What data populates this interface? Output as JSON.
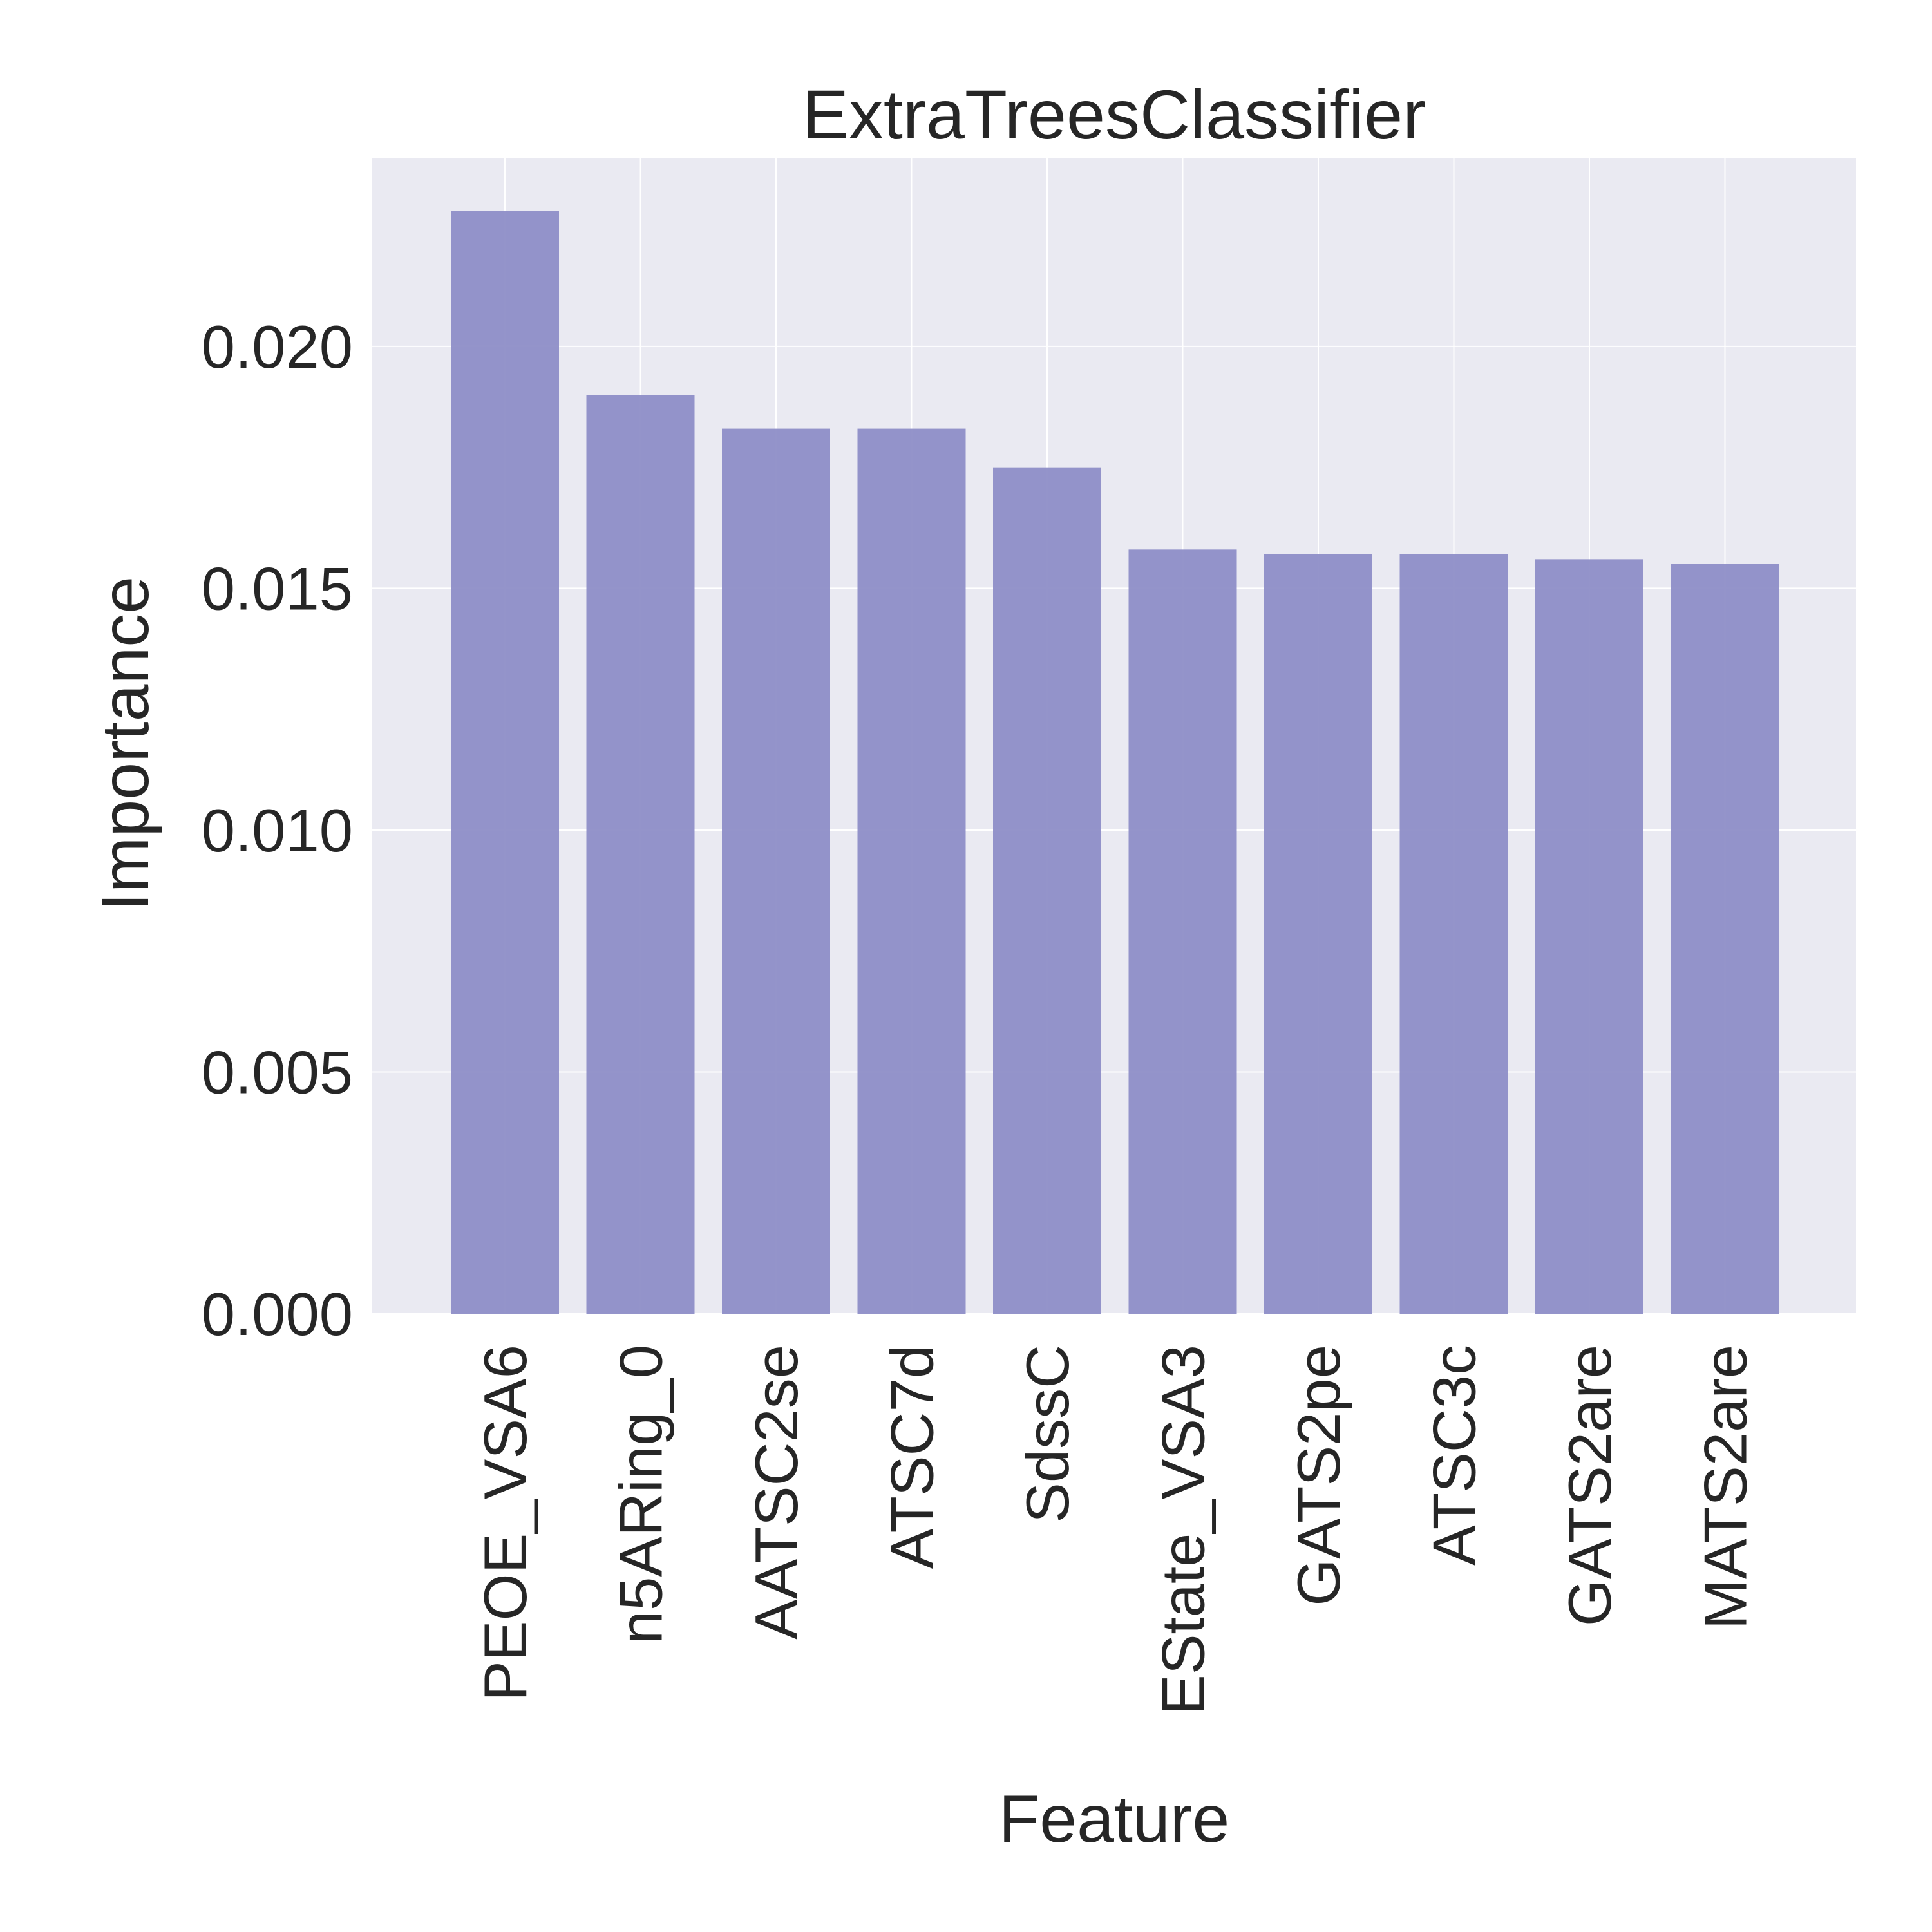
{
  "chart_data": {
    "type": "bar",
    "title": "ExtraTreesClassifier",
    "xlabel": "Feature",
    "ylabel": "Importance",
    "categories": [
      "PEOE_VSA6",
      "n5ARing_0",
      "AATSC2se",
      "ATSC7d",
      "SdssC",
      "EState_VSA3",
      "GATS2pe",
      "ATSC3c",
      "GATS2are",
      "MATS2are"
    ],
    "values": [
      0.0228,
      0.019,
      0.0183,
      0.0183,
      0.0175,
      0.0158,
      0.0157,
      0.0157,
      0.0156,
      0.0155
    ],
    "ylim": [
      0,
      0.0239
    ],
    "yticks": [
      "0.000",
      "0.005",
      "0.010",
      "0.015",
      "0.020"
    ],
    "grid": true,
    "colors": {
      "bar": "#8e8ec7",
      "plot_background": "#eaeaf2",
      "grid": "#ffffff",
      "text": "#262626"
    }
  }
}
